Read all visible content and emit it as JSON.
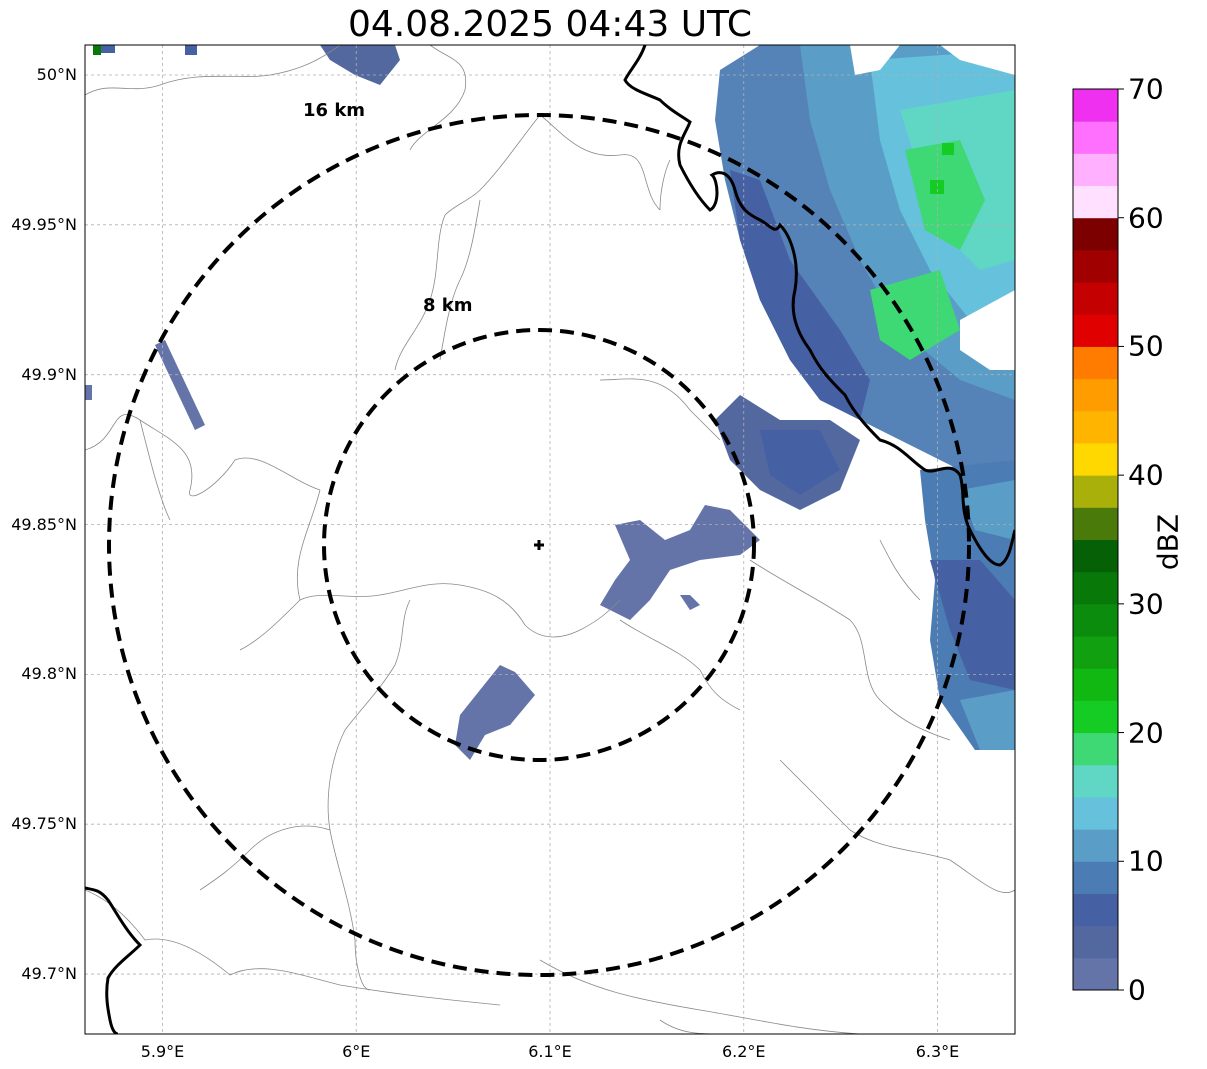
{
  "title": "04.08.2025 04:43 UTC",
  "map": {
    "lon_range": [
      5.86,
      6.34
    ],
    "lat_range": [
      49.68,
      50.01
    ],
    "x_ticks": [
      {
        "value": 5.9,
        "label": "5.9°E"
      },
      {
        "value": 6.0,
        "label": "6°E"
      },
      {
        "value": 6.1,
        "label": "6.1°E"
      },
      {
        "value": 6.2,
        "label": "6.2°E"
      },
      {
        "value": 6.3,
        "label": "6.3°E"
      }
    ],
    "y_ticks": [
      {
        "value": 50.0,
        "label": "50°N"
      },
      {
        "value": 49.95,
        "label": "49.95°N"
      },
      {
        "value": 49.9,
        "label": "49.9°N"
      },
      {
        "value": 49.85,
        "label": "49.85°N"
      },
      {
        "value": 49.8,
        "label": "49.8°N"
      },
      {
        "value": 49.75,
        "label": "49.75°N"
      },
      {
        "value": 49.7,
        "label": "49.7°N"
      }
    ],
    "gridlines": true,
    "radar_site": {
      "lon": 6.095,
      "lat": 49.844
    },
    "range_rings": [
      {
        "label": "8 km",
        "radius_km": 8
      },
      {
        "label": "16 km",
        "radius_km": 16
      }
    ]
  },
  "colorbar": {
    "label": "dBZ",
    "min": 0,
    "max": 70,
    "ticks": [
      {
        "value": 0,
        "label": "0"
      },
      {
        "value": 10,
        "label": "10"
      },
      {
        "value": 20,
        "label": "20"
      },
      {
        "value": 30,
        "label": "30"
      },
      {
        "value": 40,
        "label": "40"
      },
      {
        "value": 50,
        "label": "50"
      },
      {
        "value": 60,
        "label": "60"
      },
      {
        "value": 70,
        "label": "70"
      }
    ],
    "colors": [
      "#6474a8",
      "#5468a0",
      "#4660a4",
      "#4c7cb4",
      "#5a9ec8",
      "#66c2dc",
      "#60d6c4",
      "#3ed874",
      "#14cc24",
      "#12b812",
      "#10a010",
      "#0c8c0c",
      "#087808",
      "#066006",
      "#4a7a0a",
      "#aab00a",
      "#ffd800",
      "#ffb400",
      "#ff9c00",
      "#ff7c00",
      "#e00000",
      "#c40000",
      "#a00000",
      "#7c0000",
      "#ffe0ff",
      "#ffb0ff",
      "#ff70ff",
      "#f030f0"
    ]
  }
}
